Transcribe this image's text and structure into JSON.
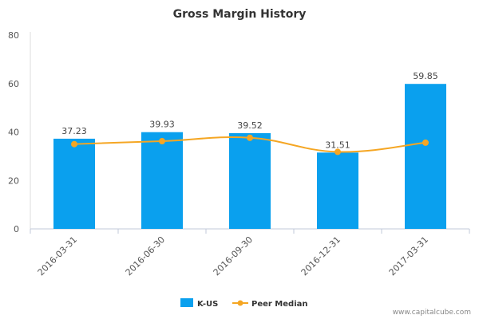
{
  "chart_data": {
    "type": "bar",
    "title": "Gross Margin History",
    "categories": [
      "2016-03-31",
      "2016-06-30",
      "2016-09-30",
      "2016-12-31",
      "2017-03-31"
    ],
    "series": [
      {
        "name": "K-US",
        "type": "bar",
        "values": [
          37.23,
          39.93,
          39.52,
          31.51,
          59.85
        ],
        "color": "#0aa0ee"
      },
      {
        "name": "Peer Median",
        "type": "line",
        "values": [
          35.0,
          36.2,
          37.6,
          31.8,
          35.6
        ],
        "color": "#f5a623"
      }
    ],
    "data_labels": [
      "37.23",
      "39.93",
      "39.52",
      "31.51",
      "59.85"
    ],
    "ylim": [
      0,
      80
    ],
    "yticks": [
      0,
      20,
      40,
      60,
      80
    ],
    "grid": false,
    "legend_position": "bottom-center"
  },
  "credit": "www.capitalcube.com"
}
